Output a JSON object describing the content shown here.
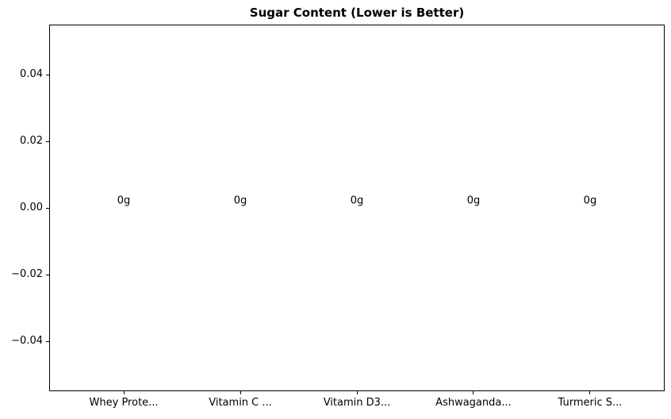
{
  "chart_data": {
    "type": "bar",
    "title": "Sugar Content (Lower is Better)",
    "categories": [
      "Whey Prote...",
      "Vitamin C ...",
      "Vitamin D3...",
      "Ashwaganda...",
      "Turmeric S..."
    ],
    "values": [
      0,
      0,
      0,
      0,
      0
    ],
    "bar_labels": [
      "0g",
      "0g",
      "0g",
      "0g",
      "0g"
    ],
    "xlabel": "",
    "ylabel": "",
    "xlim": [
      -0.64,
      4.64
    ],
    "ylim": [
      -0.055,
      0.055
    ],
    "yticks": [
      0.04,
      0.02,
      0.0,
      -0.02,
      -0.04
    ],
    "ytick_labels": [
      "0.04",
      "0.02",
      "0.00",
      "−0.02",
      "−0.04"
    ],
    "grid": false,
    "legend_position": "none",
    "colors": {
      "text": "#000000",
      "spine": "#000000",
      "background": "#ffffff"
    }
  }
}
